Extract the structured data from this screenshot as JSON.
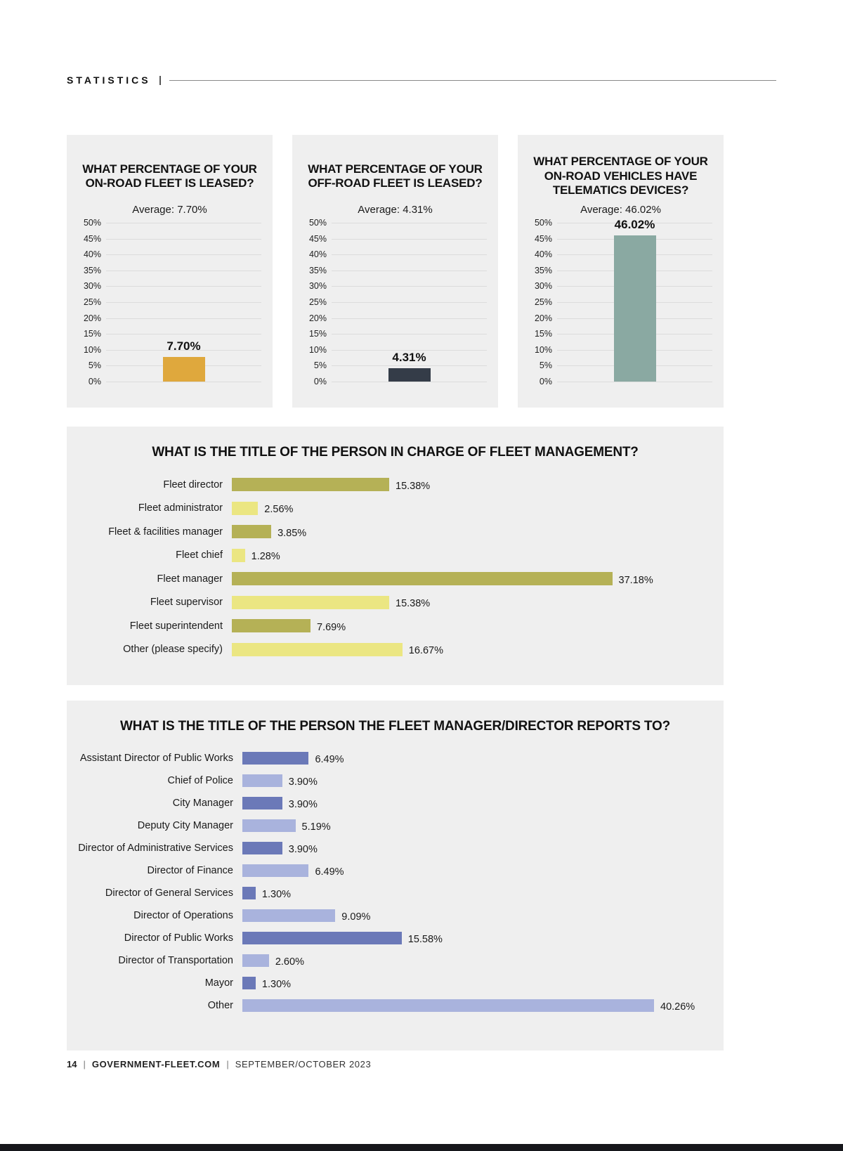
{
  "page": {
    "section_label": "STATISTICS",
    "footer": {
      "page_number": "14",
      "separator": "|",
      "site": "GOVERNMENT-FLEET.COM",
      "issue": "SEPTEMBER/OCTOBER 2023"
    }
  },
  "colors": {
    "panel_background": "#EFEFEF",
    "gridline": "#DCDCDC",
    "onroad_bar": "#DFA83D",
    "offroad_bar": "#343C48",
    "telematics_bar": "#8AA9A2",
    "olive_dark": "#B5B156",
    "olive_light": "#EBE682",
    "blue_dark": "#6B79B8",
    "blue_light": "#A9B3DD"
  },
  "chart_data": [
    {
      "type": "bar",
      "orientation": "vertical",
      "title": "WHAT PERCENTAGE OF YOUR ON-ROAD FLEET IS LEASED?",
      "subtitle": "Average: 7.70%",
      "values": [
        7.7
      ],
      "value_labels": [
        "7.70%"
      ],
      "ylim": [
        0,
        50
      ],
      "yticks": [
        "50%",
        "45%",
        "40%",
        "35%",
        "30%",
        "25%",
        "20%",
        "15%",
        "10%",
        "5%",
        "0%"
      ],
      "grid": true,
      "bar_color": "#DFA83D"
    },
    {
      "type": "bar",
      "orientation": "vertical",
      "title": "WHAT PERCENTAGE OF YOUR OFF-ROAD FLEET IS LEASED?",
      "subtitle": "Average: 4.31%",
      "values": [
        4.31
      ],
      "value_labels": [
        "4.31%"
      ],
      "ylim": [
        0,
        50
      ],
      "yticks": [
        "50%",
        "45%",
        "40%",
        "35%",
        "30%",
        "25%",
        "20%",
        "15%",
        "10%",
        "5%",
        "0%"
      ],
      "grid": true,
      "bar_color": "#343C48"
    },
    {
      "type": "bar",
      "orientation": "vertical",
      "title": "WHAT PERCENTAGE OF YOUR ON-ROAD VEHICLES HAVE TELEMATICS DEVICES?",
      "subtitle": "Average: 46.02%",
      "values": [
        46.02
      ],
      "value_labels": [
        "46.02%"
      ],
      "ylim": [
        0,
        50
      ],
      "yticks": [
        "50%",
        "45%",
        "40%",
        "35%",
        "30%",
        "25%",
        "20%",
        "15%",
        "10%",
        "5%",
        "0%"
      ],
      "grid": true,
      "bar_color": "#8AA9A2"
    },
    {
      "type": "bar",
      "orientation": "horizontal",
      "title": "WHAT IS THE TITLE OF THE PERSON IN CHARGE OF FLEET MANAGEMENT?",
      "xmax": 46,
      "categories": [
        "Fleet director",
        "Fleet administrator",
        "Fleet & facilities manager",
        "Fleet chief",
        "Fleet manager",
        "Fleet supervisor",
        "Fleet superintendent",
        "Other (please specify)"
      ],
      "values": [
        15.38,
        2.56,
        3.85,
        1.28,
        37.18,
        15.38,
        7.69,
        16.67
      ],
      "value_labels": [
        "15.38%",
        "2.56%",
        "3.85%",
        "1.28%",
        "37.18%",
        "15.38%",
        "7.69%",
        "16.67%"
      ],
      "bar_colors": [
        "#B5B156",
        "#EBE682",
        "#B5B156",
        "#EBE682",
        "#B5B156",
        "#EBE682",
        "#B5B156",
        "#EBE682"
      ]
    },
    {
      "type": "bar",
      "orientation": "horizontal",
      "title": "WHAT IS THE TITLE OF THE PERSON THE FLEET MANAGER/DIRECTOR REPORTS TO?",
      "xmax": 45,
      "categories": [
        "Assistant Director of Public Works",
        "Chief of Police",
        "City Manager",
        "Deputy City Manager",
        "Director of Administrative Services",
        "Director of Finance",
        "Director of General Services",
        "Director of Operations",
        "Director of Public Works",
        "Director of Transportation",
        "Mayor",
        "Other"
      ],
      "values": [
        6.49,
        3.9,
        3.9,
        5.19,
        3.9,
        6.49,
        1.3,
        9.09,
        15.58,
        2.6,
        1.3,
        40.26
      ],
      "value_labels": [
        "6.49%",
        "3.90%",
        "3.90%",
        "5.19%",
        "3.90%",
        "6.49%",
        "1.30%",
        "9.09%",
        "15.58%",
        "2.60%",
        "1.30%",
        "40.26%"
      ],
      "bar_colors": [
        "#6B79B8",
        "#A9B3DD",
        "#6B79B8",
        "#A9B3DD",
        "#6B79B8",
        "#A9B3DD",
        "#6B79B8",
        "#A9B3DD",
        "#6B79B8",
        "#A9B3DD",
        "#6B79B8",
        "#A9B3DD"
      ]
    }
  ]
}
